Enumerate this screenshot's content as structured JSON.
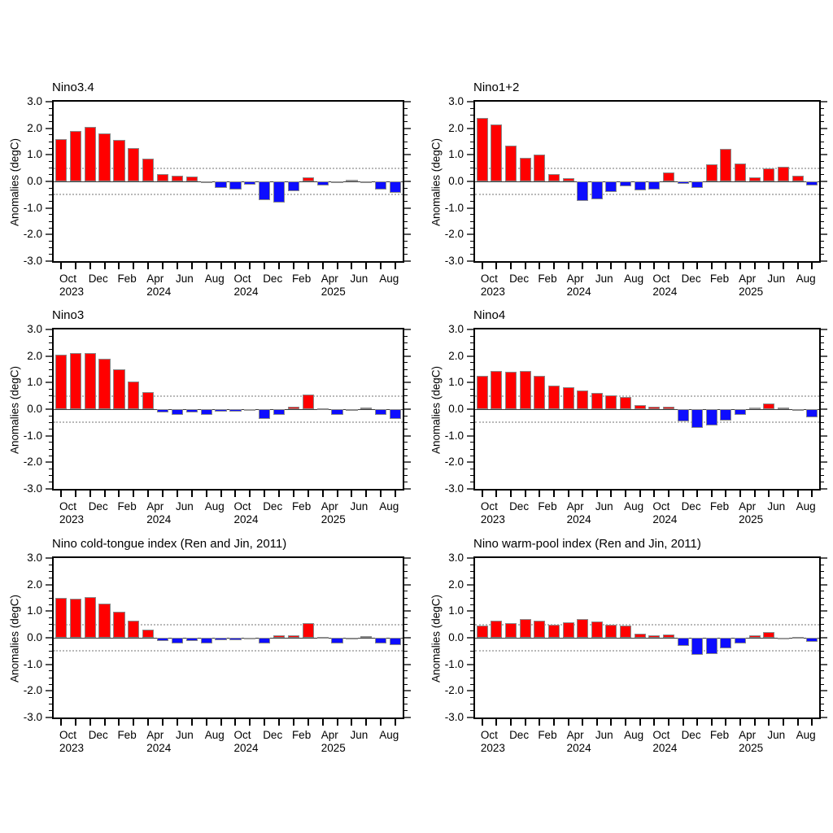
{
  "figure": {
    "background": "#ffffff",
    "description_visible_text_only": true
  },
  "colors": {
    "positive_bar": "#ff0000",
    "negative_bar": "#0d0dff",
    "near_zero_bar": "#9a9a9a",
    "bar_outline": "#8a8a8a",
    "frame": "#000000",
    "reference_dotted": "#b9b9b9",
    "zero_line": "#3a3a3a"
  },
  "axis": {
    "ylabel": "Anomalies (degC)",
    "ylim": [
      -3.0,
      3.0
    ],
    "ytick_values": [
      3,
      2,
      1,
      0,
      -1,
      -2,
      -3
    ],
    "ytick_labels": [
      "3.0",
      "2.0",
      "1.0",
      "0.0",
      "-1.0",
      "-2.0",
      "-3.0"
    ],
    "y_minor_step": 0.25,
    "reference_lines": [
      0.5,
      -0.5
    ],
    "grid": "dotted horizontal lines at +0.5 and -0.5 only",
    "months": [
      "Oct 2023",
      "Nov 2023",
      "Dec 2023",
      "Jan 2024",
      "Feb 2024",
      "Mar 2024",
      "Apr 2024",
      "May 2024",
      "Jun 2024",
      "Jul 2024",
      "Aug 2024",
      "Sep 2024",
      "Oct 2024",
      "Nov 2024",
      "Dec 2024",
      "Jan 2025",
      "Feb 2025",
      "Mar 2025",
      "Apr 2025",
      "May 2025",
      "Jun 2025",
      "Jul 2025",
      "Aug 2025",
      "Sep 2025"
    ],
    "xtick_display": [
      {
        "index": 0,
        "line1": "Oct",
        "line2": "2023"
      },
      {
        "index": 2,
        "line1": "Dec",
        "line2": ""
      },
      {
        "index": 4,
        "line1": "Feb",
        "line2": ""
      },
      {
        "index": 6,
        "line1": "Apr",
        "line2": "2024"
      },
      {
        "index": 8,
        "line1": "Jun",
        "line2": ""
      },
      {
        "index": 10,
        "line1": "Aug",
        "line2": ""
      },
      {
        "index": 12,
        "line1": "Oct",
        "line2": "2024"
      },
      {
        "index": 14,
        "line1": "Dec",
        "line2": ""
      },
      {
        "index": 16,
        "line1": "Feb",
        "line2": ""
      },
      {
        "index": 18,
        "line1": "Apr",
        "line2": "2025"
      },
      {
        "index": 20,
        "line1": "Jun",
        "line2": ""
      },
      {
        "index": 22,
        "line1": "Aug",
        "line2": ""
      }
    ]
  },
  "chart_data": [
    {
      "type": "bar",
      "title": "Nino3.4",
      "ylabel": "Anomalies (degC)",
      "ylim": [
        -3.0,
        3.0
      ],
      "categories": [
        "Oct 2023",
        "Nov 2023",
        "Dec 2023",
        "Jan 2024",
        "Feb 2024",
        "Mar 2024",
        "Apr 2024",
        "May 2024",
        "Jun 2024",
        "Jul 2024",
        "Aug 2024",
        "Sep 2024",
        "Oct 2024",
        "Nov 2024",
        "Dec 2024",
        "Jan 2025",
        "Feb 2025",
        "Mar 2025",
        "Apr 2025",
        "May 2025",
        "Jun 2025",
        "Jul 2025",
        "Aug 2025",
        "Sep 2025"
      ],
      "values": [
        1.6,
        1.9,
        2.05,
        1.8,
        1.55,
        1.25,
        0.85,
        0.27,
        0.22,
        0.17,
        -0.05,
        -0.25,
        -0.3,
        -0.12,
        -0.7,
        -0.8,
        -0.37,
        0.15,
        -0.14,
        -0.05,
        0.02,
        -0.07,
        -0.32,
        -0.42
      ]
    },
    {
      "type": "bar",
      "title": "Nino1+2",
      "ylabel": "Anomalies (degC)",
      "ylim": [
        -3.0,
        3.0
      ],
      "categories": [
        "Oct 2023",
        "Nov 2023",
        "Dec 2023",
        "Jan 2024",
        "Feb 2024",
        "Mar 2024",
        "Apr 2024",
        "May 2024",
        "Jun 2024",
        "Jul 2024",
        "Aug 2024",
        "Sep 2024",
        "Oct 2024",
        "Nov 2024",
        "Dec 2024",
        "Jan 2025",
        "Feb 2025",
        "Mar 2025",
        "Apr 2025",
        "May 2025",
        "Jun 2025",
        "Jul 2025",
        "Aug 2025",
        "Sep 2025"
      ],
      "values": [
        2.4,
        2.15,
        1.35,
        0.88,
        1.0,
        0.28,
        0.12,
        -0.72,
        -0.68,
        -0.4,
        -0.18,
        -0.35,
        -0.31,
        0.34,
        -0.1,
        -0.24,
        0.65,
        1.22,
        0.66,
        0.16,
        0.49,
        0.56,
        0.21,
        -0.16
      ]
    },
    {
      "type": "bar",
      "title": "Nino3",
      "ylabel": "Anomalies (degC)",
      "ylim": [
        -3.0,
        3.0
      ],
      "categories": [
        "Oct 2023",
        "Nov 2023",
        "Dec 2023",
        "Jan 2024",
        "Feb 2024",
        "Mar 2024",
        "Apr 2024",
        "May 2024",
        "Jun 2024",
        "Jul 2024",
        "Aug 2024",
        "Sep 2024",
        "Oct 2024",
        "Nov 2024",
        "Dec 2024",
        "Jan 2025",
        "Feb 2025",
        "Mar 2025",
        "Apr 2025",
        "May 2025",
        "Jun 2025",
        "Jul 2025",
        "Aug 2025",
        "Sep 2025"
      ],
      "values": [
        2.05,
        2.1,
        2.1,
        1.9,
        1.5,
        1.03,
        0.63,
        -0.13,
        -0.2,
        -0.12,
        -0.2,
        -0.1,
        -0.1,
        -0.02,
        -0.37,
        -0.2,
        0.1,
        0.55,
        0.04,
        -0.22,
        -0.04,
        0.07,
        -0.2,
        -0.38
      ]
    },
    {
      "type": "bar",
      "title": "Nino4",
      "ylabel": "Anomalies (degC)",
      "ylim": [
        -3.0,
        3.0
      ],
      "categories": [
        "Oct 2023",
        "Nov 2023",
        "Dec 2023",
        "Jan 2024",
        "Feb 2024",
        "Mar 2024",
        "Apr 2024",
        "May 2024",
        "Jun 2024",
        "Jul 2024",
        "Aug 2024",
        "Sep 2024",
        "Oct 2024",
        "Nov 2024",
        "Dec 2024",
        "Jan 2025",
        "Feb 2025",
        "Mar 2025",
        "Apr 2025",
        "May 2025",
        "Jun 2025",
        "Jul 2025",
        "Aug 2025",
        "Sep 2025"
      ],
      "values": [
        1.27,
        1.45,
        1.4,
        1.45,
        1.25,
        0.9,
        0.82,
        0.7,
        0.62,
        0.52,
        0.45,
        0.16,
        0.09,
        0.1,
        -0.45,
        -0.7,
        -0.6,
        -0.43,
        -0.22,
        0.0,
        0.2,
        0.05,
        -0.07,
        -0.3
      ]
    },
    {
      "type": "bar",
      "title": "Nino cold-tongue index (Ren and Jin, 2011)",
      "ylabel": "Anomalies (degC)",
      "ylim": [
        -3.0,
        3.0
      ],
      "categories": [
        "Oct 2023",
        "Nov 2023",
        "Dec 2023",
        "Jan 2024",
        "Feb 2024",
        "Mar 2024",
        "Apr 2024",
        "May 2024",
        "Jun 2024",
        "Jul 2024",
        "Aug 2024",
        "Sep 2024",
        "Oct 2024",
        "Nov 2024",
        "Dec 2024",
        "Jan 2025",
        "Feb 2025",
        "Mar 2025",
        "Apr 2025",
        "May 2025",
        "Jun 2025",
        "Jul 2025",
        "Aug 2025",
        "Sep 2025"
      ],
      "values": [
        1.5,
        1.48,
        1.52,
        1.3,
        0.98,
        0.64,
        0.3,
        -0.13,
        -0.2,
        -0.11,
        -0.22,
        -0.1,
        -0.09,
        -0.02,
        -0.2,
        0.09,
        0.1,
        0.54,
        0.04,
        -0.2,
        -0.06,
        0.05,
        -0.2,
        -0.27
      ]
    },
    {
      "type": "bar",
      "title": "Nino warm-pool index (Ren and Jin, 2011)",
      "ylabel": "Anomalies (degC)",
      "ylim": [
        -3.0,
        3.0
      ],
      "categories": [
        "Oct 2023",
        "Nov 2023",
        "Dec 2023",
        "Jan 2024",
        "Feb 2024",
        "Mar 2024",
        "Apr 2024",
        "May 2024",
        "Jun 2024",
        "Jul 2024",
        "Aug 2024",
        "Sep 2024",
        "Oct 2024",
        "Nov 2024",
        "Dec 2024",
        "Jan 2025",
        "Feb 2025",
        "Mar 2025",
        "Apr 2025",
        "May 2025",
        "Jun 2025",
        "Jul 2025",
        "Aug 2025",
        "Sep 2025"
      ],
      "values": [
        0.45,
        0.63,
        0.56,
        0.7,
        0.65,
        0.5,
        0.57,
        0.7,
        0.62,
        0.5,
        0.45,
        0.16,
        0.1,
        0.12,
        -0.3,
        -0.65,
        -0.6,
        -0.4,
        -0.2,
        0.08,
        0.2,
        -0.01,
        0.03,
        -0.15
      ]
    }
  ]
}
